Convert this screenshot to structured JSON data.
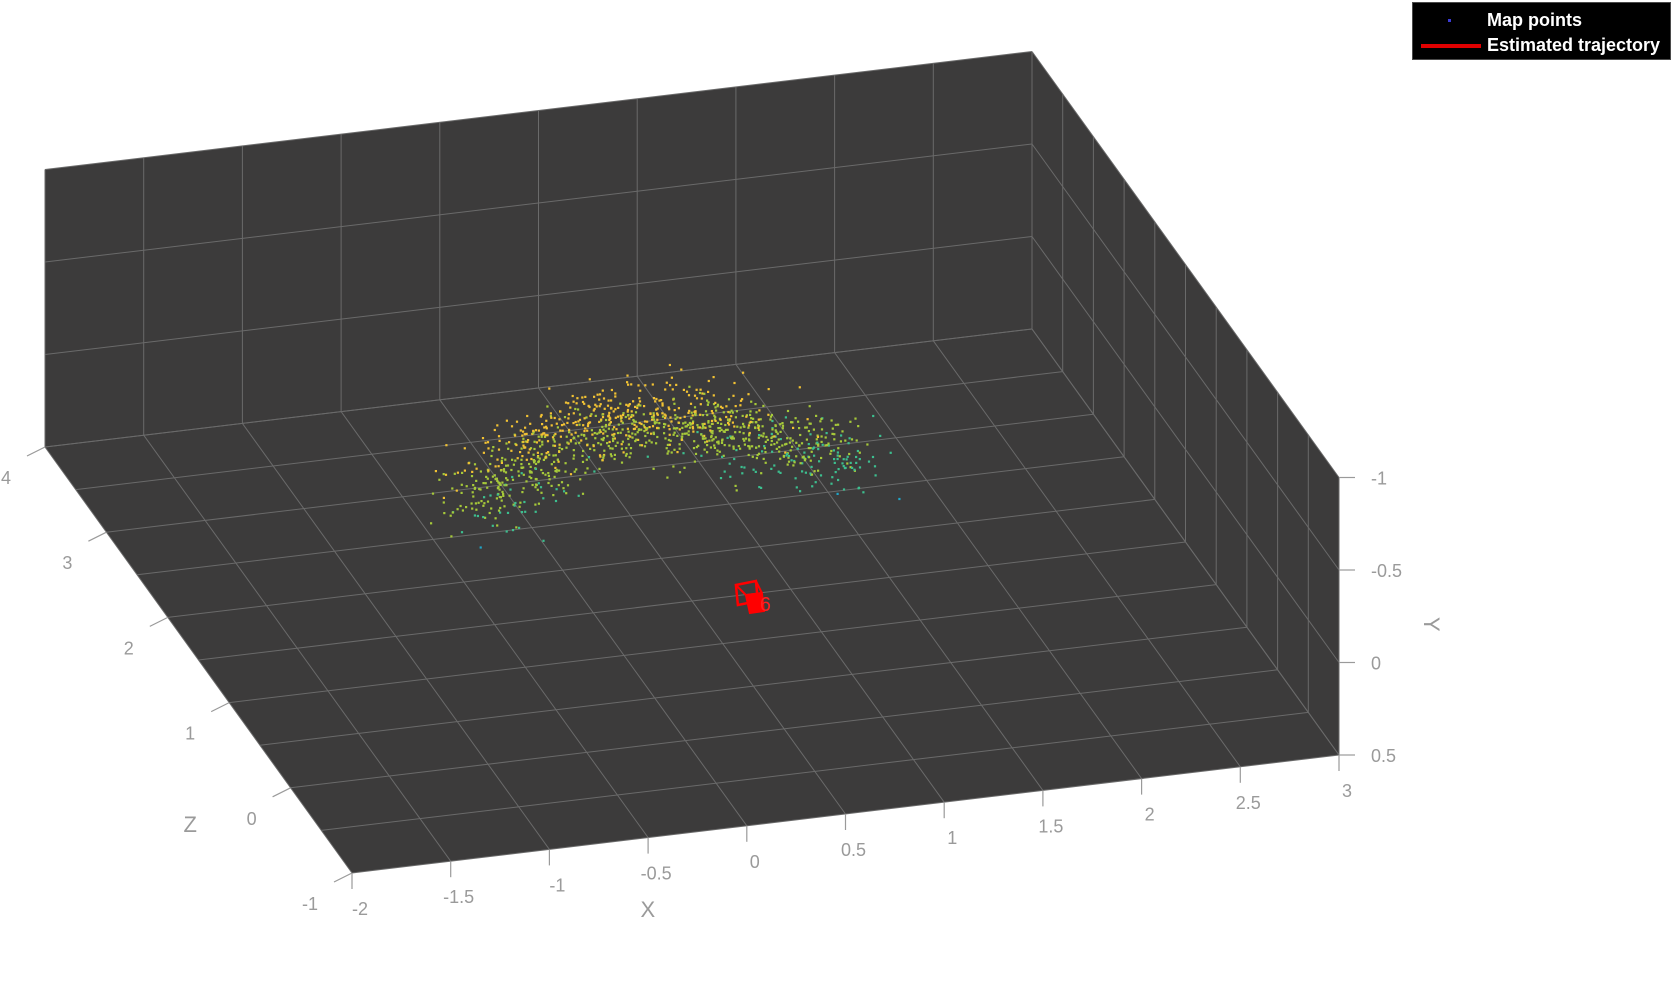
{
  "chart_data": {
    "type": "scatter",
    "view": "3d",
    "xlabel": "X",
    "ylabel": "Y",
    "zlabel": "Z",
    "x_ticks": [
      "-2",
      "-1.5",
      "-1",
      "-0.5",
      "0",
      "0.5",
      "1",
      "1.5",
      "2",
      "2.5",
      "3"
    ],
    "y_ticks": [
      "-1",
      "-0.5",
      "0",
      "0.5"
    ],
    "z_ticks": [
      "-1",
      "0",
      "1",
      "2",
      "3",
      "4"
    ],
    "xlim": [
      -2,
      3
    ],
    "ylim": [
      -1,
      0.5
    ],
    "zlim": [
      -1,
      4
    ],
    "grid": true,
    "background": "#3c3b3b",
    "legend": {
      "placement": "top-right",
      "entries": [
        {
          "label": "Map points",
          "marker": "point",
          "color": "#3b3bd6"
        },
        {
          "label": "Estimated trajectory",
          "marker": "line",
          "color": "#e00000"
        }
      ]
    },
    "series": [
      {
        "name": "Map points",
        "colormap": [
          "#1fa6c8",
          "#3cbf8f",
          "#a6c93a",
          "#f2c233"
        ],
        "count": 1200
      },
      {
        "name": "Estimated trajectory",
        "color": "#ff0000",
        "camera_label": "6"
      }
    ]
  }
}
